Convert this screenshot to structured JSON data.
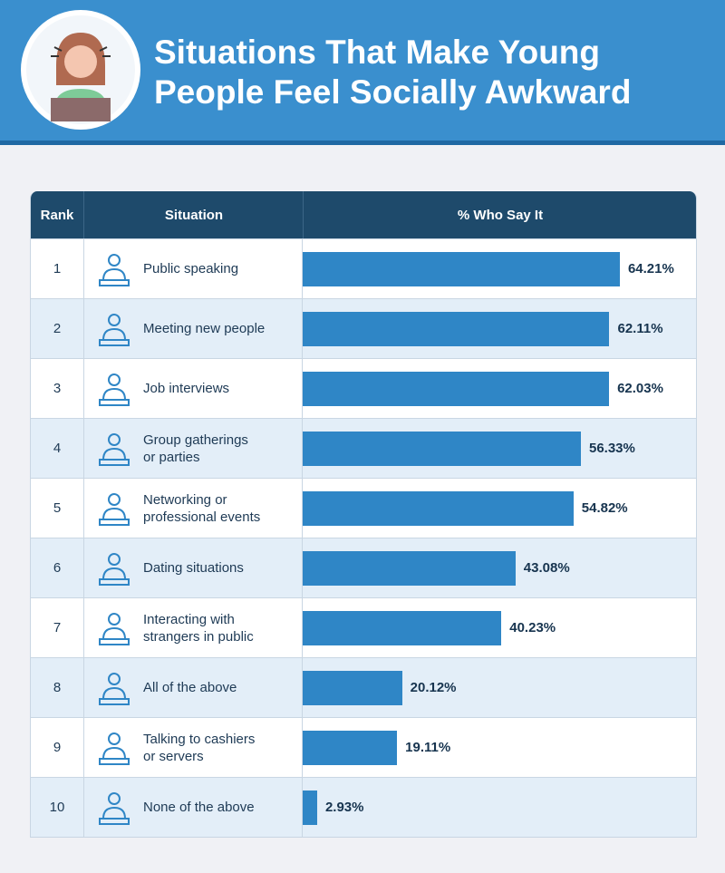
{
  "chart_data": {
    "type": "bar",
    "title": "Situations That Make Young\nPeople Feel Socially Awkward",
    "columns": [
      "Rank",
      "Situation",
      "% Who Say It"
    ],
    "ranks": [
      1,
      2,
      3,
      4,
      5,
      6,
      7,
      8,
      9,
      10
    ],
    "categories": [
      "Public speaking",
      "Meeting new people",
      "Job interviews",
      "Group gatherings\nor parties",
      "Networking or\nprofessional events",
      "Dating situations",
      "Interacting with\nstrangers in public",
      "All of the above",
      "Talking to cashiers\nor servers",
      "None of the above"
    ],
    "values": [
      64.21,
      62.11,
      62.03,
      56.33,
      54.82,
      43.08,
      40.23,
      20.12,
      19.11,
      2.93
    ],
    "value_labels": [
      "64.21%",
      "62.11%",
      "62.03%",
      "56.33%",
      "54.82%",
      "43.08%",
      "40.23%",
      "20.12%",
      "19.11%",
      "2.93%"
    ],
    "color": "#2f86c6"
  }
}
